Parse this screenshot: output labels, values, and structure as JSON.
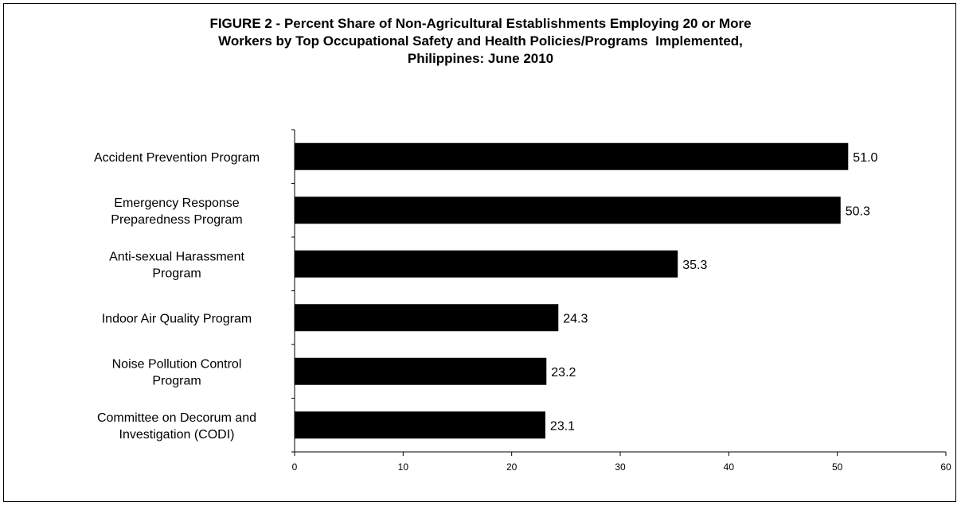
{
  "chart_data": {
    "type": "bar",
    "orientation": "horizontal",
    "title": "FIGURE 2 - Percent Share of Non-Agricultural Establishments Employing 20 or More Workers by Top Occupational Safety and Health Policies/Programs  Implemented, Philippines: June 2010",
    "title_lines": [
      "FIGURE 2 - Percent Share of Non-Agricultural Establishments Employing 20 or More",
      "Workers by Top Occupational Safety and Health Policies/Programs  Implemented,",
      "Philippines: June 2010"
    ],
    "categories": [
      [
        "Accident Prevention Program"
      ],
      [
        "Emergency Response",
        "Preparedness Program"
      ],
      [
        "Anti-sexual Harassment",
        "Program"
      ],
      [
        "Indoor Air Quality Program"
      ],
      [
        "Noise Pollution Control",
        "Program"
      ],
      [
        "Committee on Decorum and",
        "Investigation (CODI)"
      ]
    ],
    "values": [
      51.0,
      50.3,
      35.3,
      24.3,
      23.2,
      23.1
    ],
    "value_labels": [
      "51.0",
      "50.3",
      "35.3",
      "24.3",
      "23.2",
      "23.1"
    ],
    "xlim": [
      0,
      60
    ],
    "xticks": [
      0,
      10,
      20,
      30,
      40,
      50,
      60
    ],
    "xlabel": "",
    "ylabel": "",
    "grid": false,
    "legend": "none",
    "bar_color": "#000000"
  }
}
